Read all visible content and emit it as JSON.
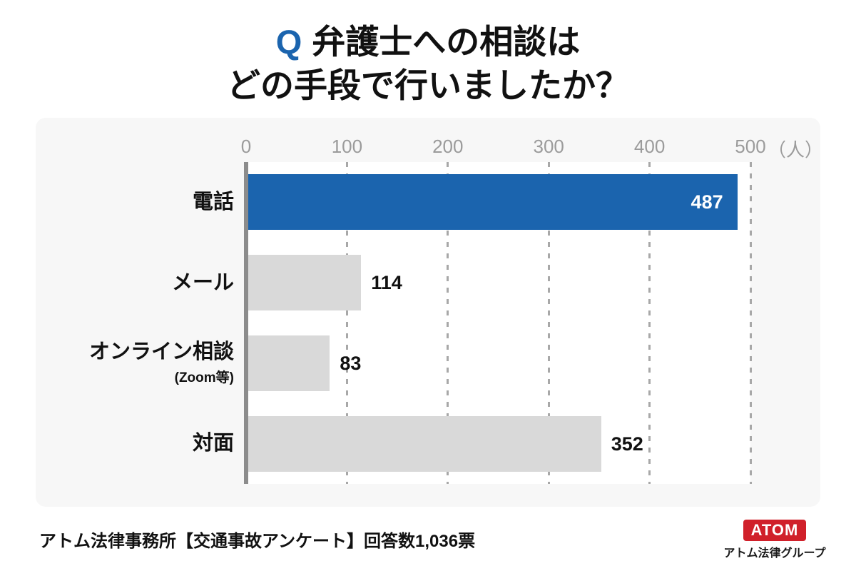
{
  "title": {
    "q_mark": "Q",
    "line1": "弁護士への相談は",
    "line2": "どの手段で行いましたか？"
  },
  "chart_data": {
    "type": "bar",
    "orientation": "horizontal",
    "title": "弁護士への相談はどの手段で行いましたか？",
    "categories": [
      "電話",
      "メール",
      "オンライン相談",
      "対面"
    ],
    "category_sublabels": [
      "",
      "",
      "(Zoom等)",
      ""
    ],
    "values": [
      487,
      114,
      83,
      352
    ],
    "xlim": [
      0,
      500
    ],
    "x_ticks": [
      0,
      100,
      200,
      300,
      400,
      500
    ],
    "x_unit_label": "（人）",
    "grid": "dashed-vertical",
    "legend": "none",
    "bar_colors": [
      "#1b64ae",
      "#d9d9d9",
      "#d9d9d9",
      "#d9d9d9"
    ],
    "value_label_placement": [
      "inside",
      "outside",
      "outside",
      "outside"
    ]
  },
  "footer": {
    "source_text": "アトム法律事務所【交通事故アンケート】回答数1,036票",
    "logo_box_text": "ATOM",
    "logo_group_text": "アトム法律グループ"
  },
  "colors": {
    "accent_blue": "#1b64ae",
    "bar_gray": "#d9d9d9",
    "panel_bg": "#f7f7f7",
    "plot_bg": "#ffffff",
    "axis_gray": "#8c8c8c",
    "grid_gray": "#a8a8a8",
    "tick_text": "#9b9b9b",
    "logo_red": "#d0202a"
  }
}
